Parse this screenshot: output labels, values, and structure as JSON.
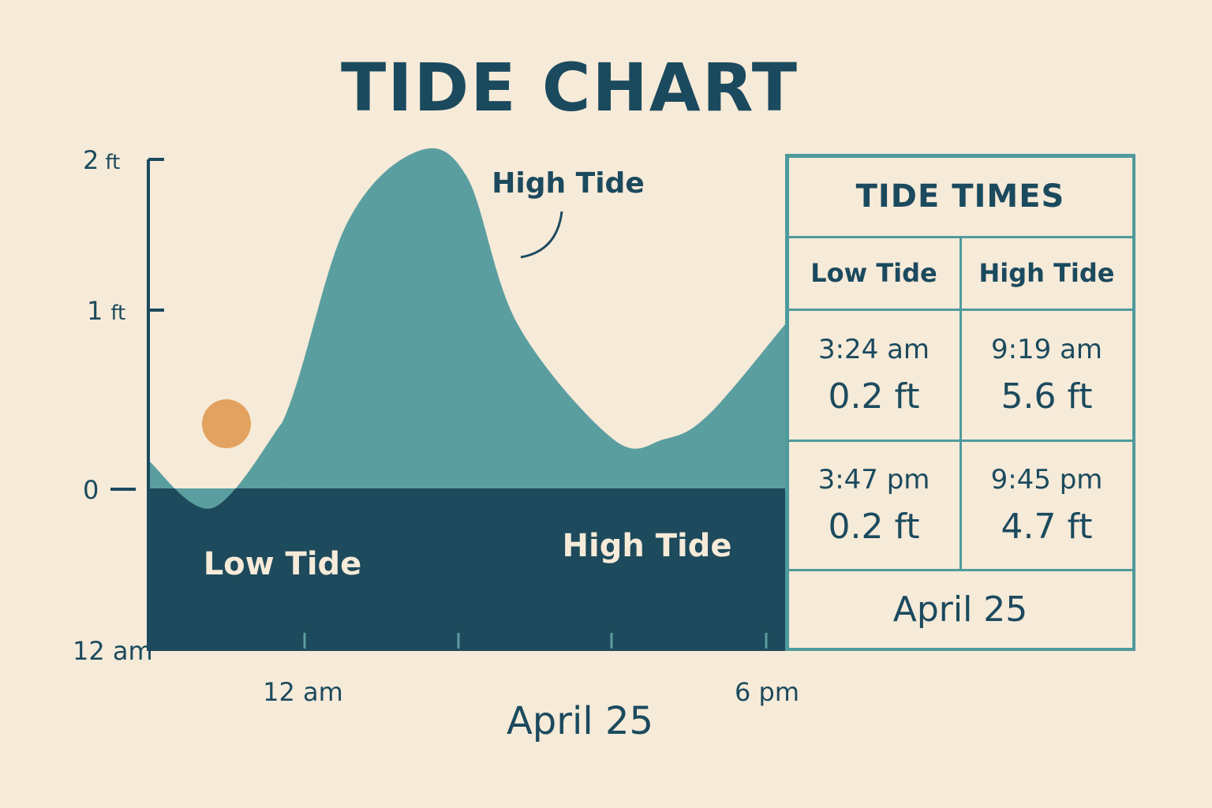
{
  "chart_data": {
    "type": "area",
    "title": "TIDE CHART",
    "y_ticks": [
      {
        "value": 2,
        "label": "2",
        "unit": "ft"
      },
      {
        "value": 1,
        "label": "1",
        "unit": "ft"
      },
      {
        "value": 0,
        "label": "0",
        "unit": ""
      }
    ],
    "x_labels": [
      "12 am",
      "12 am",
      "6 pm"
    ],
    "date_label": "April 25",
    "curve": {
      "x": [
        0.0,
        0.1,
        0.21,
        0.31,
        0.42,
        0.5,
        0.58,
        0.73,
        0.81,
        0.88,
        1.0
      ],
      "y": [
        0.17,
        -0.12,
        0.4,
        1.6,
        2.05,
        1.9,
        1.0,
        0.3,
        0.3,
        0.45,
        1.0
      ]
    },
    "annotations": {
      "high_tide_callout": "High Tide",
      "low_tide_label": "Low Tide",
      "high_tide_label": "High Tide"
    },
    "colors": {
      "background": "#f6ead8",
      "water": "#5b9ea0",
      "deep": "#1d4a5c",
      "sun": "#e3a25f",
      "text": "#1b4a5e"
    }
  },
  "table": {
    "header": "TIDE TIMES",
    "col_low": "Low Tide",
    "col_high": "High Tide",
    "rows": [
      {
        "low_time": "3:24 am",
        "low_height": "0.2 ft",
        "high_time": "9:19 am",
        "high_height": "5.6 ft"
      },
      {
        "low_time": "3:47 pm",
        "low_height": "0.2 ft",
        "high_time": "9:45 pm",
        "high_height": "4.7 ft"
      }
    ],
    "footer": "April 25"
  }
}
